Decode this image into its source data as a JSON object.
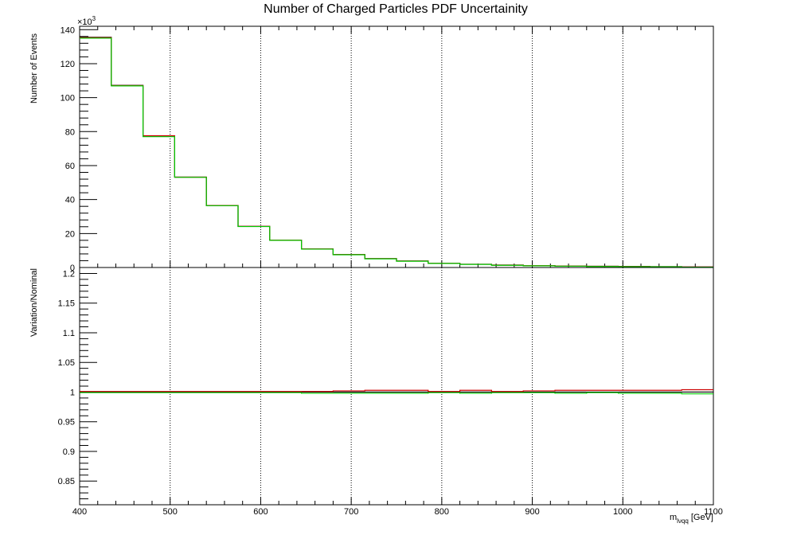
{
  "title": "Number of Charged Particles PDF Uncertainity",
  "chart_data": [
    {
      "type": "line",
      "panel": "top",
      "ylabel": "Number of Events",
      "exponent": "×10",
      "exponent_power": "3",
      "xlim": [
        400,
        1100
      ],
      "ylim": [
        0,
        142
      ],
      "yticks": [
        0,
        20,
        40,
        60,
        80,
        100,
        120,
        140
      ],
      "grid_x": true,
      "bin_edges": [
        400,
        435,
        470,
        505,
        540,
        575,
        610,
        645,
        680,
        715,
        750,
        785,
        820,
        855,
        890,
        925,
        960,
        995,
        1030,
        1065,
        1100
      ],
      "series": [
        {
          "color": "#000000",
          "values": [
            135.5,
            107.2,
            77.5,
            53.2,
            36.5,
            24.2,
            16.1,
            10.9,
            7.6,
            5.2,
            3.8,
            2.5,
            1.9,
            1.4,
            1.1,
            0.9,
            0.7,
            0.6,
            0.5,
            0.3
          ]
        },
        {
          "color": "#cc0000",
          "values": [
            135.3,
            107.1,
            77.6,
            53.2,
            36.5,
            24.2,
            16.1,
            10.9,
            7.6,
            5.2,
            3.8,
            2.5,
            1.9,
            1.4,
            1.1,
            0.9,
            0.7,
            0.6,
            0.5,
            0.3
          ]
        },
        {
          "color": "#00cc00",
          "values": [
            135.0,
            106.9,
            77.0,
            53.1,
            36.4,
            24.1,
            16.0,
            10.8,
            7.5,
            5.1,
            3.7,
            2.4,
            1.8,
            1.3,
            1.0,
            0.8,
            0.6,
            0.5,
            0.4,
            0.2
          ]
        }
      ]
    },
    {
      "type": "line",
      "panel": "bottom",
      "xlabel_main": "m",
      "xlabel_sub": "lνqq",
      "xlabel_unit": " [GeV]",
      "ylabel": "Variation/Nominal",
      "xlim": [
        400,
        1100
      ],
      "ylim": [
        0.81,
        1.21
      ],
      "yticks": [
        0.85,
        0.9,
        0.95,
        1,
        1.05,
        1.1,
        1.15,
        1.2
      ],
      "xticks": [
        400,
        500,
        600,
        700,
        800,
        900,
        1000,
        1100
      ],
      "grid_x": true,
      "bin_edges": [
        400,
        435,
        470,
        505,
        540,
        575,
        610,
        645,
        680,
        715,
        750,
        785,
        820,
        855,
        890,
        925,
        960,
        995,
        1030,
        1065,
        1100
      ],
      "series": [
        {
          "color": "#000000",
          "values": [
            1.0,
            1.0,
            1.0,
            1.0,
            1.0,
            1.0,
            1.0,
            1.0,
            1.0,
            1.0,
            1.0,
            1.0,
            1.0,
            1.0,
            1.0,
            1.0,
            1.0,
            1.0,
            1.0,
            1.0
          ]
        },
        {
          "color": "#cc0000",
          "values": [
            1.001,
            1.001,
            1.001,
            1.001,
            1.001,
            1.001,
            1.001,
            1.001,
            1.002,
            1.003,
            1.003,
            1.001,
            1.003,
            1.001,
            1.002,
            1.003,
            1.003,
            1.003,
            1.003,
            1.004
          ]
        },
        {
          "color": "#00cc00",
          "values": [
            0.999,
            0.999,
            0.999,
            0.999,
            0.999,
            0.999,
            0.999,
            0.998,
            0.998,
            0.998,
            0.998,
            0.999,
            0.998,
            0.999,
            0.999,
            0.998,
            0.999,
            0.998,
            0.998,
            0.997
          ]
        }
      ]
    }
  ]
}
